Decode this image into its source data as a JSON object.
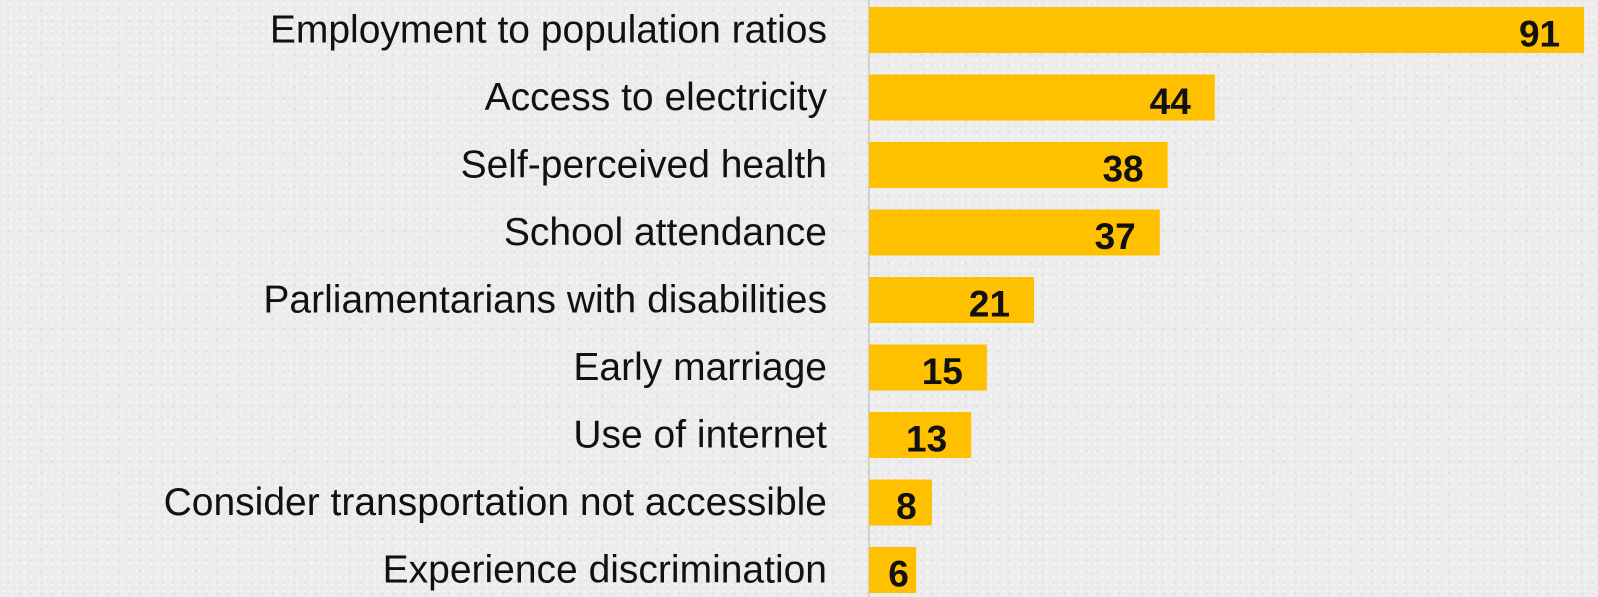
{
  "chart_data": {
    "type": "bar",
    "orientation": "horizontal",
    "categories": [
      "Employment to population ratios",
      "Access to electricity",
      "Self-perceived health",
      "School attendance",
      "Parliamentarians with disabilities",
      "Early marriage",
      "Use of internet",
      "Consider transportation not accessible",
      "Experience discrimination"
    ],
    "values": [
      91,
      44,
      38,
      37,
      21,
      15,
      13,
      8,
      6
    ],
    "data_labels": [
      "91",
      "44",
      "38",
      "37",
      "21",
      "15",
      "13",
      "8",
      "6"
    ],
    "xlim": [
      0,
      92
    ],
    "bar_color": "#FFC000",
    "grid": false,
    "legend": "none"
  }
}
